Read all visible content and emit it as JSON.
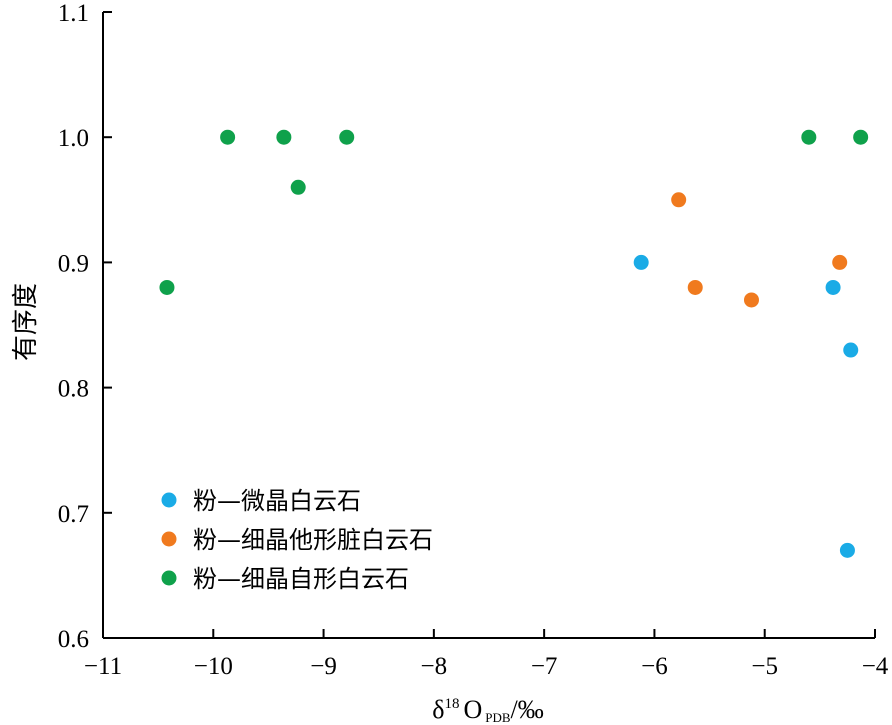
{
  "chart_data": {
    "type": "scatter",
    "xlabel": {
      "main": "δ",
      "sup": "18",
      "o": "O",
      "sub": "PDB",
      "unit": "/‰"
    },
    "ylabel": "有序度",
    "xlim": [
      -11,
      -4
    ],
    "ylim": [
      0.6,
      1.1
    ],
    "xticks": [
      -11,
      -10,
      -9,
      -8,
      -7,
      -6,
      -5,
      -4
    ],
    "xtick_labels": [
      "−11",
      "−10",
      "−9",
      "−8",
      "−7",
      "−6",
      "−5",
      "−4"
    ],
    "yticks": [
      0.6,
      0.7,
      0.8,
      0.9,
      1.0,
      1.1
    ],
    "ytick_labels": [
      "0.6",
      "0.7",
      "0.8",
      "0.9",
      "1.0",
      "1.1"
    ],
    "grid": false,
    "legend_position": "lower-left",
    "series": [
      {
        "name": "粉—微晶白云石",
        "color": "#1aabe6",
        "points": [
          {
            "x": -6.12,
            "y": 0.9
          },
          {
            "x": -4.38,
            "y": 0.88
          },
          {
            "x": -4.22,
            "y": 0.83
          },
          {
            "x": -4.25,
            "y": 0.67
          }
        ]
      },
      {
        "name": "粉—细晶他形脏白云石",
        "color": "#f07a1e",
        "points": [
          {
            "x": -5.78,
            "y": 0.95
          },
          {
            "x": -5.63,
            "y": 0.88
          },
          {
            "x": -5.12,
            "y": 0.87
          },
          {
            "x": -4.32,
            "y": 0.9
          }
        ]
      },
      {
        "name": "粉—细晶自形白云石",
        "color": "#0fa14b",
        "points": [
          {
            "x": -10.42,
            "y": 0.88
          },
          {
            "x": -9.87,
            "y": 1.0
          },
          {
            "x": -9.36,
            "y": 1.0
          },
          {
            "x": -9.23,
            "y": 0.96
          },
          {
            "x": -8.79,
            "y": 1.0
          },
          {
            "x": -4.6,
            "y": 1.0
          },
          {
            "x": -4.13,
            "y": 1.0
          }
        ]
      }
    ]
  }
}
